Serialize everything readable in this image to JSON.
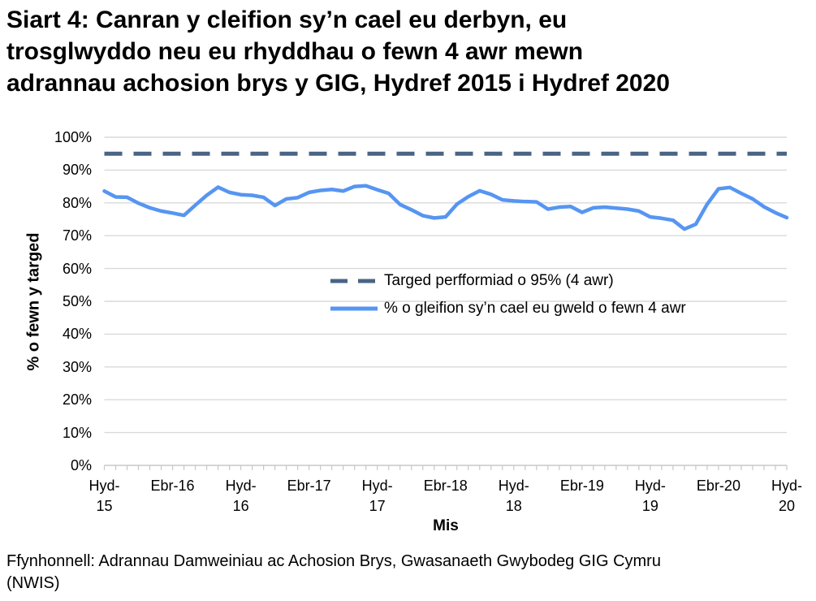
{
  "page": {
    "title_lines": [
      "Siart 4: Canran y cleifion sy’n cael eu derbyn, eu",
      "trosglwyddo neu eu rhyddhau o fewn 4 awr mewn",
      "adrannau achosion brys y GIG, Hydref 2015 i Hydref 2020"
    ],
    "source_lines": [
      "Ffynhonnell: Adrannau Damweiniau ac Achosion Brys, Gwasanaeth Gwybodeg GIG Cymru",
      "(NWIS)"
    ]
  },
  "chart_data": {
    "type": "line",
    "title": "Siart 4: Canran y cleifion sy’n cael eu derbyn, eu trosglwyddo neu eu rhyddhau o fewn 4 awr mewn adrannau achosion brys y GIG, Hydref 2015 i Hydref 2020",
    "xlabel": "Mis",
    "ylabel": "% o fewn y targed",
    "ylim": [
      0,
      100
    ],
    "y_tick_step": 10,
    "y_tick_suffix": "%",
    "grid": true,
    "legend_position": "inside-right-middle",
    "x_interval": "monthly, 61 points from Hyd-15 to Hyd-20",
    "x_tick_labels": [
      [
        "Hyd-",
        "15"
      ],
      [
        "Ebr-16"
      ],
      [
        "Hyd-",
        "16"
      ],
      [
        "Ebr-17"
      ],
      [
        "Hyd-",
        "17"
      ],
      [
        "Ebr-18"
      ],
      [
        "Hyd-",
        "18"
      ],
      [
        "Ebr-19"
      ],
      [
        "Hyd-",
        "19"
      ],
      [
        "Ebr-20"
      ],
      [
        "Hyd-",
        "20"
      ]
    ],
    "series": [
      {
        "name": "Targed perfformiad o 95% (4 awr)",
        "style": "dashed",
        "color": "#4A6485",
        "constant_value": 95
      },
      {
        "name": "% o gleifion sy’n cael eu gweld o fewn 4 awr",
        "style": "solid",
        "color": "#5695F2",
        "values": [
          83.6,
          81.8,
          81.7,
          79.9,
          78.5,
          77.5,
          76.9,
          76.2,
          79.3,
          82.3,
          84.8,
          83.2,
          82.5,
          82.3,
          81.7,
          79.2,
          81.2,
          81.6,
          83.2,
          83.8,
          84.1,
          83.6,
          85.0,
          85.2,
          84.0,
          82.9,
          79.5,
          77.9,
          76.1,
          75.4,
          75.7,
          79.6,
          81.9,
          83.7,
          82.6,
          80.9,
          80.6,
          80.4,
          80.3,
          78.1,
          78.7,
          78.9,
          77.1,
          78.5,
          78.7,
          78.4,
          78.1,
          77.5,
          75.7,
          75.3,
          74.7,
          72.0,
          73.5,
          79.6,
          84.3,
          84.7,
          82.9,
          81.2,
          78.8,
          77.0,
          75.5
        ]
      }
    ],
    "colors": {
      "gridline": "#D9D9D9",
      "axis": "#C8C8C8",
      "text": "#000000"
    }
  }
}
